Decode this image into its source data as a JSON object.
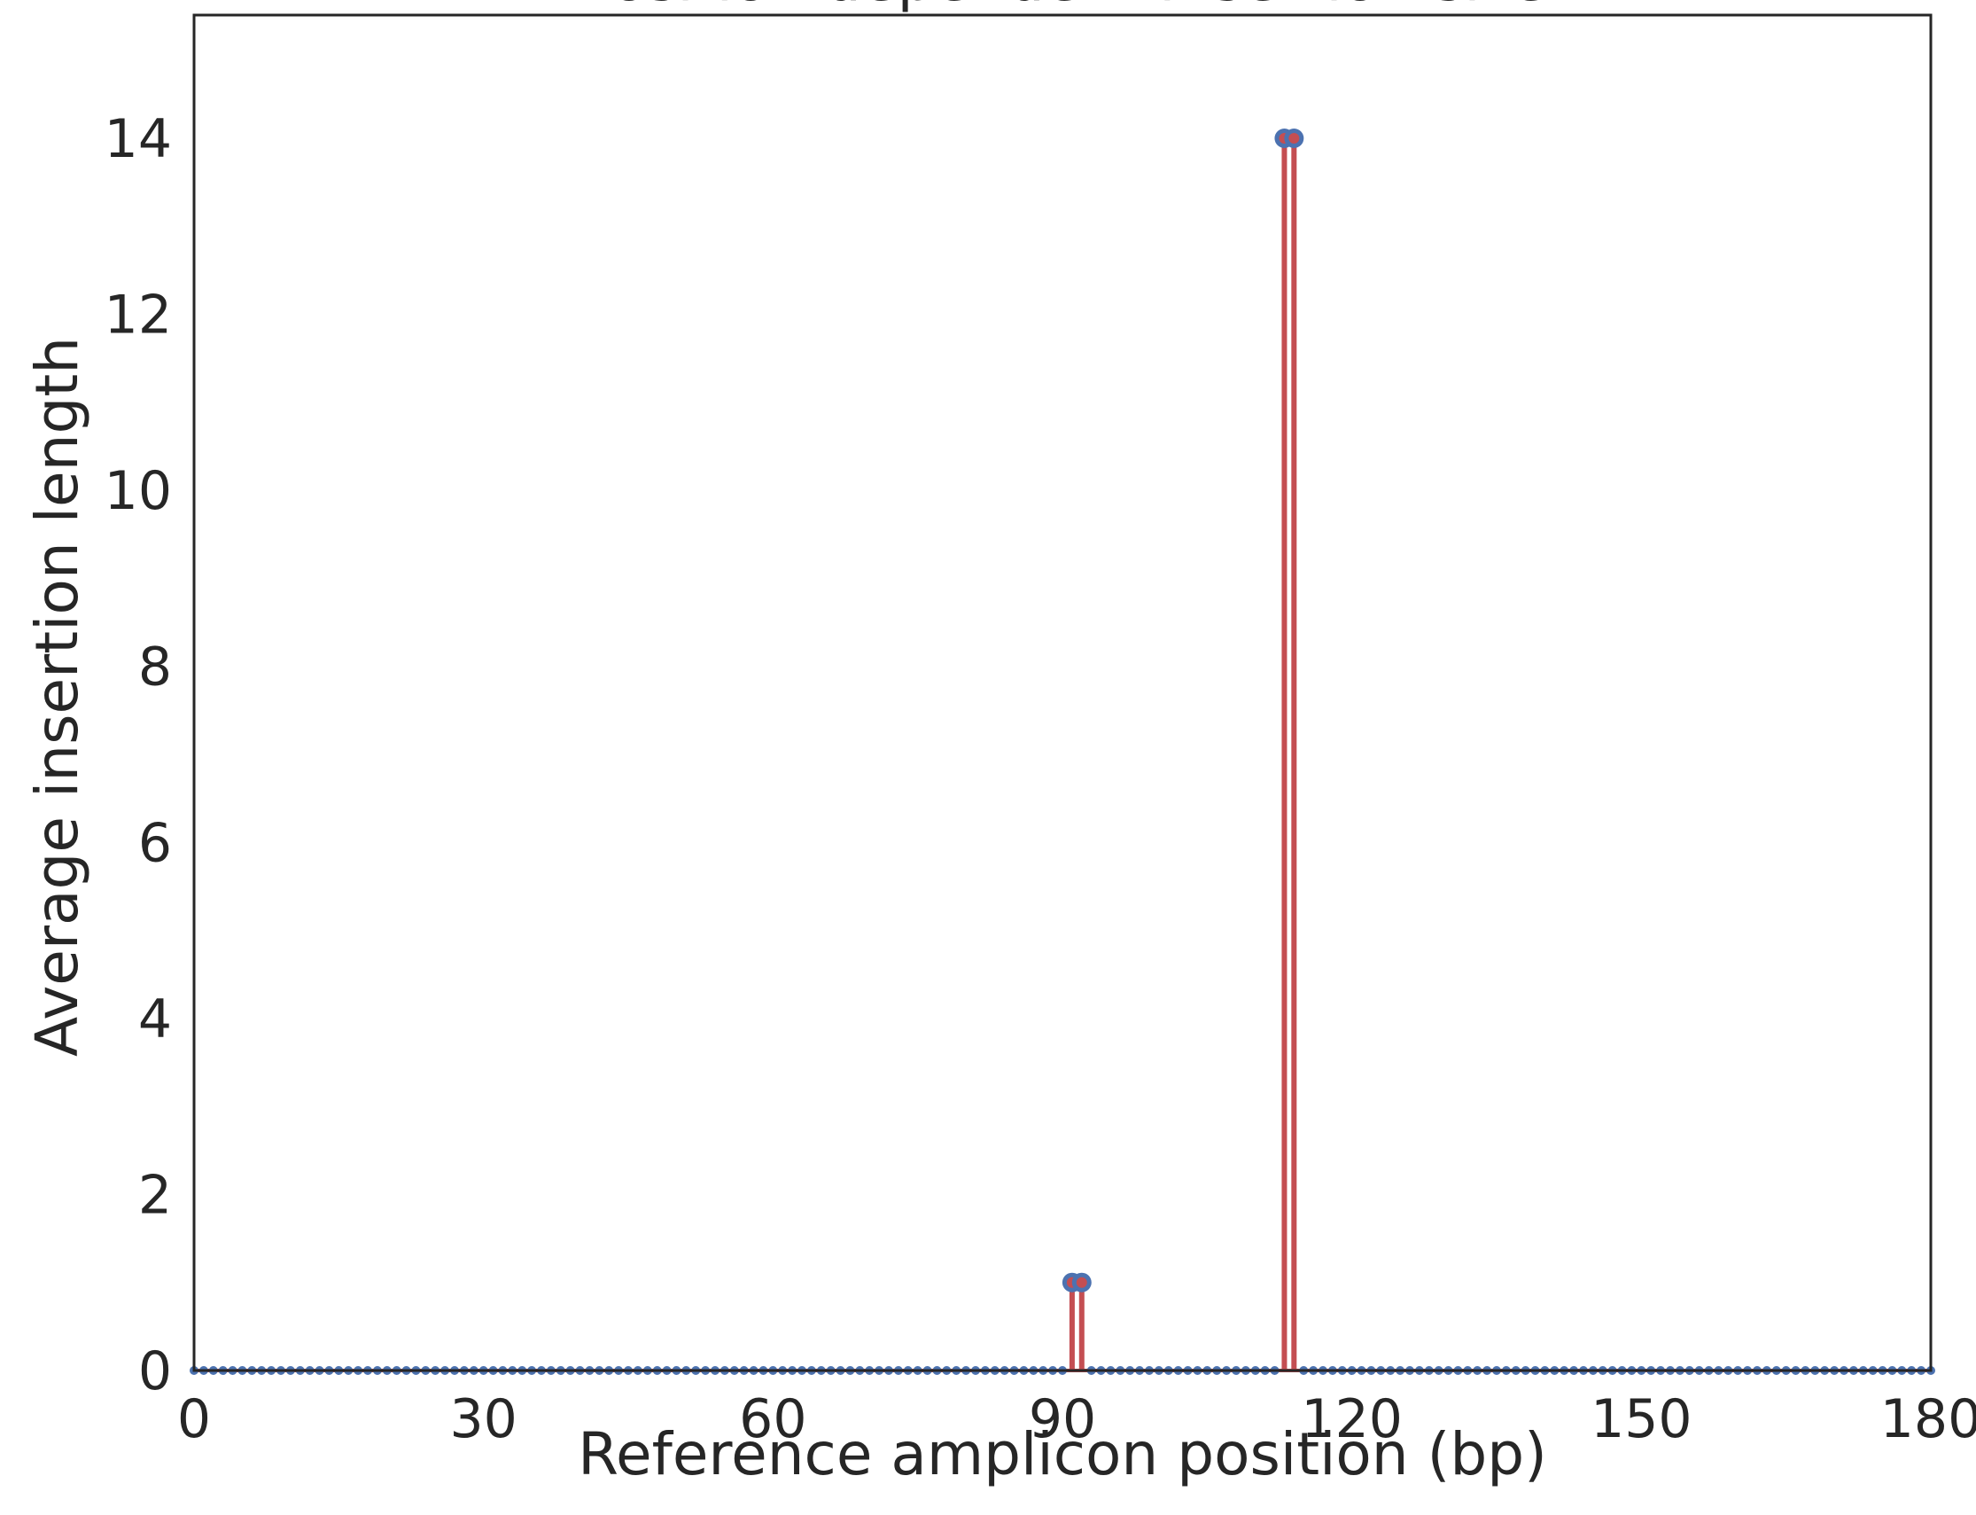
{
  "chart_data": {
    "type": "scatter",
    "title": "Position dependent insertion size",
    "xlabel": "Reference amplicon position (bp)",
    "ylabel": "Average insertion length",
    "xlim": [
      0,
      180
    ],
    "ylim": [
      0,
      15.4
    ],
    "xticks": [
      0,
      30,
      60,
      90,
      120,
      150,
      180
    ],
    "yticks": [
      0,
      2,
      4,
      6,
      8,
      10,
      12,
      14
    ],
    "grid": false,
    "legend": "none",
    "colors": {
      "stem": "#c44e52",
      "marker": "#4c72b0",
      "axis": "#262626"
    },
    "series": [
      {
        "x": [
          0,
          1,
          2,
          3,
          4,
          5,
          6,
          7,
          8,
          9,
          10,
          11,
          12,
          13,
          14,
          15,
          16,
          17,
          18,
          19,
          20,
          21,
          22,
          23,
          24,
          25,
          26,
          27,
          28,
          29,
          30,
          31,
          32,
          33,
          34,
          35,
          36,
          37,
          38,
          39,
          40,
          41,
          42,
          43,
          44,
          45,
          46,
          47,
          48,
          49,
          50,
          51,
          52,
          53,
          54,
          55,
          56,
          57,
          58,
          59,
          60,
          61,
          62,
          63,
          64,
          65,
          66,
          67,
          68,
          69,
          70,
          71,
          72,
          73,
          74,
          75,
          76,
          77,
          78,
          79,
          80,
          81,
          82,
          83,
          84,
          85,
          86,
          87,
          88,
          89,
          90,
          91,
          92,
          93,
          94,
          95,
          96,
          97,
          98,
          99,
          100,
          101,
          102,
          103,
          104,
          105,
          106,
          107,
          108,
          109,
          110,
          111,
          112,
          113,
          114,
          115,
          116,
          117,
          118,
          119,
          120,
          121,
          122,
          123,
          124,
          125,
          126,
          127,
          128,
          129,
          130,
          131,
          132,
          133,
          134,
          135,
          136,
          137,
          138,
          139,
          140,
          141,
          142,
          143,
          144,
          145,
          146,
          147,
          148,
          149,
          150,
          151,
          152,
          153,
          154,
          155,
          156,
          157,
          158,
          159,
          160,
          161,
          162,
          163,
          164,
          165,
          166,
          167,
          168,
          169,
          170,
          171,
          172,
          173,
          174,
          175,
          176,
          177,
          178,
          179,
          180
        ],
        "y": [
          0,
          0,
          0,
          0,
          0,
          0,
          0,
          0,
          0,
          0,
          0,
          0,
          0,
          0,
          0,
          0,
          0,
          0,
          0,
          0,
          0,
          0,
          0,
          0,
          0,
          0,
          0,
          0,
          0,
          0,
          0,
          0,
          0,
          0,
          0,
          0,
          0,
          0,
          0,
          0,
          0,
          0,
          0,
          0,
          0,
          0,
          0,
          0,
          0,
          0,
          0,
          0,
          0,
          0,
          0,
          0,
          0,
          0,
          0,
          0,
          0,
          0,
          0,
          0,
          0,
          0,
          0,
          0,
          0,
          0,
          0,
          0,
          0,
          0,
          0,
          0,
          0,
          0,
          0,
          0,
          0,
          0,
          0,
          0,
          0,
          0,
          0,
          0,
          0,
          0,
          0,
          1,
          1,
          0,
          0,
          0,
          0,
          0,
          0,
          0,
          0,
          0,
          0,
          0,
          0,
          0,
          0,
          0,
          0,
          0,
          0,
          0,
          0,
          14,
          14,
          0,
          0,
          0,
          0,
          0,
          0,
          0,
          0,
          0,
          0,
          0,
          0,
          0,
          0,
          0,
          0,
          0,
          0,
          0,
          0,
          0,
          0,
          0,
          0,
          0,
          0,
          0,
          0,
          0,
          0,
          0,
          0,
          0,
          0,
          0,
          0,
          0,
          0,
          0,
          0,
          0,
          0,
          0,
          0,
          0,
          0,
          0,
          0,
          0,
          0,
          0,
          0,
          0,
          0,
          0,
          0,
          0,
          0,
          0,
          0,
          0,
          0,
          0,
          0,
          0,
          0
        ]
      }
    ]
  }
}
